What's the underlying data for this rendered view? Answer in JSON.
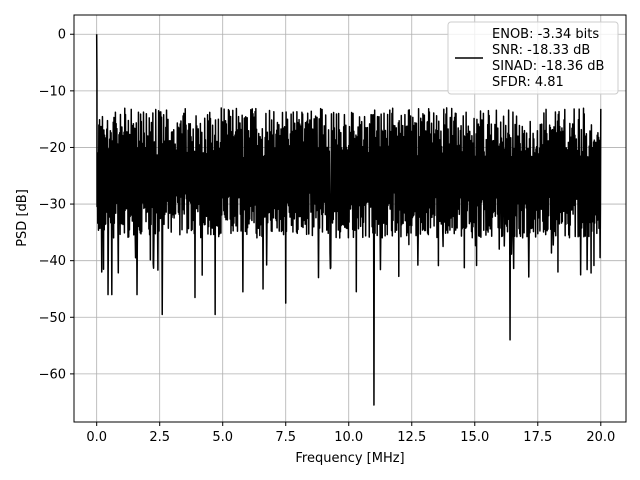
{
  "chart_data": {
    "type": "line",
    "xlabel": "Frequency [MHz]",
    "ylabel": "PSD [dB]",
    "xlim": [
      -0.9,
      21.0
    ],
    "ylim": [
      -68.5,
      3.4
    ],
    "x_ticks": [
      0.0,
      2.5,
      5.0,
      7.5,
      10.0,
      12.5,
      15.0,
      17.5,
      20.0
    ],
    "x_tick_labels": [
      "0.0",
      "2.5",
      "5.0",
      "7.5",
      "10.0",
      "12.5",
      "15.0",
      "17.5",
      "20.0"
    ],
    "y_ticks": [
      0,
      -10,
      -20,
      -30,
      -40,
      -50,
      -60
    ],
    "y_tick_labels": [
      "0",
      "−10",
      "−20",
      "−30",
      "−40",
      "−50",
      "−60"
    ],
    "grid": true,
    "line_color": "#000000",
    "legend": {
      "placement": "top-right",
      "entries": [
        "ENOB: -3.34 bits",
        "SNR: -18.33 dB",
        "SINAD: -18.36 dB",
        "SFDR: 4.81"
      ]
    },
    "series": [
      {
        "x_range": [
          0.0,
          20.0
        ],
        "peak": {
          "x": 0.0,
          "y": 0.0
        },
        "noise_floor_center": -22,
        "noise_floor_upper": -13,
        "noise_floor_lower": -33,
        "notable_dips": [
          {
            "x": 0.2,
            "y": -42
          },
          {
            "x": 0.45,
            "y": -46
          },
          {
            "x": 0.6,
            "y": -46
          },
          {
            "x": 1.6,
            "y": -46
          },
          {
            "x": 2.6,
            "y": -49.5
          },
          {
            "x": 3.9,
            "y": -46.5
          },
          {
            "x": 4.7,
            "y": -49.5
          },
          {
            "x": 5.8,
            "y": -45.5
          },
          {
            "x": 6.6,
            "y": -45
          },
          {
            "x": 7.5,
            "y": -47.5
          },
          {
            "x": 8.8,
            "y": -43
          },
          {
            "x": 10.3,
            "y": -45.5
          },
          {
            "x": 11.0,
            "y": -65.5
          },
          {
            "x": 16.4,
            "y": -54
          },
          {
            "x": 18.3,
            "y": -42
          },
          {
            "x": 19.2,
            "y": -42.5
          }
        ]
      }
    ]
  }
}
